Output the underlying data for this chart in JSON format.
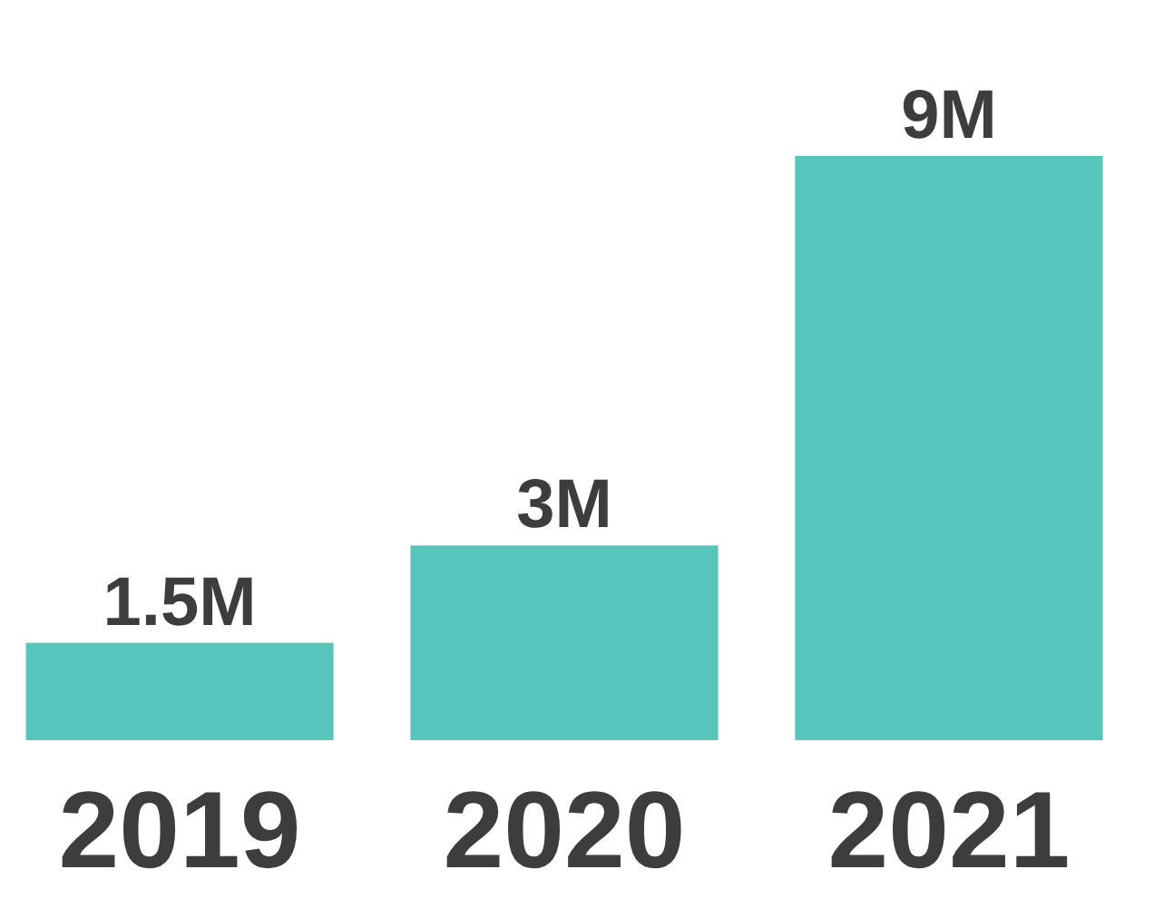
{
  "chart_data": {
    "type": "bar",
    "categories": [
      "2019",
      "2020",
      "2021"
    ],
    "values": [
      1.5,
      3,
      9
    ],
    "value_labels": [
      "1.5M",
      "3M",
      "9M"
    ],
    "color": "#58c5bb"
  }
}
